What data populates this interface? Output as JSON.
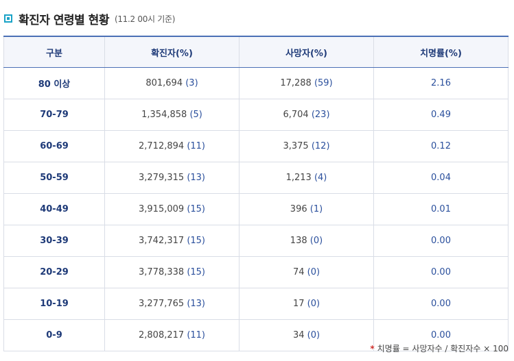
{
  "header": {
    "title": "확진자 연령별 현황",
    "subtitle": "(11.2 00시 기준)"
  },
  "table": {
    "columns": [
      "구분",
      "확진자(%)",
      "사망자(%)",
      "치명률(%)"
    ],
    "rows": [
      {
        "group": "80 이상",
        "cases": "801,694",
        "cases_pct": "(3)",
        "deaths": "17,288",
        "deaths_pct": "(59)",
        "rate": "2.16"
      },
      {
        "group": "70-79",
        "cases": "1,354,858",
        "cases_pct": "(5)",
        "deaths": "6,704",
        "deaths_pct": "(23)",
        "rate": "0.49"
      },
      {
        "group": "60-69",
        "cases": "2,712,894",
        "cases_pct": "(11)",
        "deaths": "3,375",
        "deaths_pct": "(12)",
        "rate": "0.12"
      },
      {
        "group": "50-59",
        "cases": "3,279,315",
        "cases_pct": "(13)",
        "deaths": "1,213",
        "deaths_pct": "(4)",
        "rate": "0.04"
      },
      {
        "group": "40-49",
        "cases": "3,915,009",
        "cases_pct": "(15)",
        "deaths": "396",
        "deaths_pct": "(1)",
        "rate": "0.01"
      },
      {
        "group": "30-39",
        "cases": "3,742,317",
        "cases_pct": "(15)",
        "deaths": "138",
        "deaths_pct": "(0)",
        "rate": "0.00"
      },
      {
        "group": "20-29",
        "cases": "3,778,338",
        "cases_pct": "(15)",
        "deaths": "74",
        "deaths_pct": "(0)",
        "rate": "0.00"
      },
      {
        "group": "10-19",
        "cases": "3,277,765",
        "cases_pct": "(13)",
        "deaths": "17",
        "deaths_pct": "(0)",
        "rate": "0.00"
      },
      {
        "group": "0-9",
        "cases": "2,808,217",
        "cases_pct": "(11)",
        "deaths": "34",
        "deaths_pct": "(0)",
        "rate": "0.00"
      }
    ]
  },
  "footnote": {
    "marker": "*",
    "text": "치명률 = 사망자수 / 확진자수 × 100"
  },
  "colors": {
    "accent": "#1aa3c7",
    "header_text": "#1e3a78",
    "header_border": "#4a6fb5",
    "marker": "#d0312d"
  }
}
